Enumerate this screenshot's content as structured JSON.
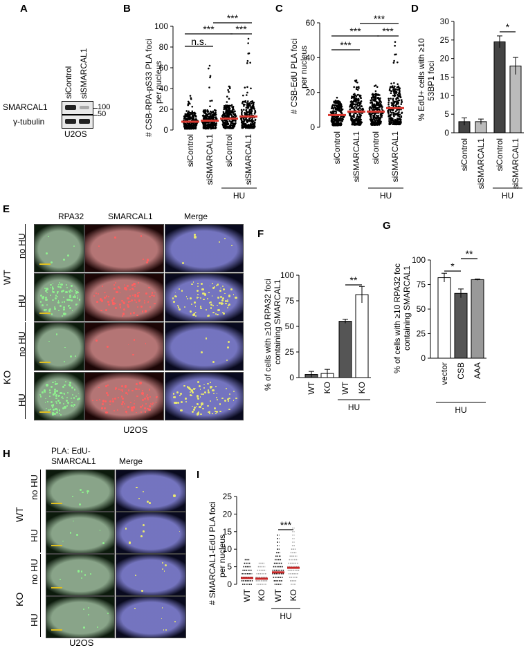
{
  "panels": {
    "A": {
      "letter": "A",
      "band1": "SMARCAL1",
      "band2": "γ-tubulin",
      "lane1": "siControl",
      "lane2": "siSMARCAL1",
      "mw1": "100",
      "mw2": "50",
      "cell": "U2OS"
    },
    "B": {
      "letter": "B",
      "ylabel": "# CSB-RPA-pS33 PLA foci per nucleus",
      "ylabel1": "# CSB-RPA-pS33 PLA foci",
      "ylabel2": "per nucleus",
      "categories": [
        "siControl",
        "siSMARCAL1",
        "siControl",
        "siSMARCAL1"
      ],
      "group": "HU",
      "ns": "n.s.",
      "sig1": "***",
      "sig2": "***",
      "sig3": "***",
      "ticks": [
        "0",
        "20",
        "40",
        "60",
        "80",
        "100"
      ]
    },
    "C": {
      "letter": "C",
      "ylabel1": "# CSB-EdU PLA foci",
      "ylabel2": "per nucleus",
      "categories": [
        "siControl",
        "siSMARCAL1",
        "siControl",
        "siSMARCAL1"
      ],
      "group": "HU",
      "sig1": "***",
      "sig2": "***",
      "sig3": "***",
      "sig4": "***",
      "ticks": [
        "0",
        "20",
        "40",
        "60"
      ]
    },
    "D": {
      "letter": "D",
      "ylabel1": "% EdU+ cells with ≥10",
      "ylabel2": "53BP1 foci",
      "categories": [
        "siControl",
        "siSMARCAL1",
        "siControl",
        "siSMARCAL1"
      ],
      "group": "HU",
      "sig": "*",
      "ticks": [
        "0",
        "5",
        "10",
        "15",
        "20",
        "25",
        "30"
      ]
    },
    "E": {
      "letter": "E",
      "cols": [
        "RPA32",
        "SMARCAL1",
        "Merge"
      ],
      "rows": [
        "no HU",
        "HU",
        "no HU",
        "HU"
      ],
      "genotypes": [
        "WT",
        "KO"
      ],
      "cell": "U2OS"
    },
    "F": {
      "letter": "F",
      "ylabel1": "% of cells with ≥10 RPA32 foci",
      "ylabel2": "containing SMARCAL1",
      "categories": [
        "WT",
        "KO",
        "WT",
        "KO"
      ],
      "group": "HU",
      "sig": "**",
      "ticks": [
        "0",
        "25",
        "50",
        "75",
        "100"
      ]
    },
    "G": {
      "letter": "G",
      "ylabel1": "% of cells with ≥10 RPA32 foc",
      "ylabel2": "containing SMARCAL1",
      "categories": [
        "vector",
        "CSB",
        "AAA"
      ],
      "group": "HU",
      "sig1": "*",
      "sig2": "**",
      "ticks": [
        "0",
        "25",
        "50",
        "75",
        "100"
      ]
    },
    "H": {
      "letter": "H",
      "col1a": "PLA: EdU-",
      "col1b": "SMARCAL1",
      "col2": "Merge",
      "rows": [
        "no HU",
        "HU",
        "no HU",
        "HU"
      ],
      "genotypes": [
        "WT",
        "KO"
      ],
      "cell": "U2OS"
    },
    "I": {
      "letter": "I",
      "ylabel1": "# SMARCAL1-EdU PLA foci",
      "ylabel2": "per nucleus",
      "categories": [
        "WT",
        "KO",
        "WT",
        "KO"
      ],
      "group": "HU",
      "sig": "***",
      "ticks": [
        "0",
        "5",
        "10",
        "15",
        "20",
        "25"
      ]
    }
  },
  "chart_data": [
    {
      "panel": "B",
      "type": "scatter",
      "ylabel": "# CSB-RPA-pS33 PLA foci per nucleus",
      "ylim": [
        0,
        100
      ],
      "categories": [
        "siControl",
        "siSMARCAL1",
        "siControl HU",
        "siSMARCAL1 HU"
      ],
      "medians": [
        8,
        9,
        11,
        13
      ],
      "maxima": [
        33,
        62,
        42,
        88
      ]
    },
    {
      "panel": "C",
      "type": "scatter",
      "ylabel": "# CSB-EdU PLA foci per nucleus",
      "ylim": [
        0,
        60
      ],
      "categories": [
        "siControl",
        "siSMARCAL1",
        "siControl HU",
        "siSMARCAL1 HU"
      ],
      "medians": [
        7,
        9,
        9,
        11
      ],
      "maxima": [
        17,
        27,
        24,
        49
      ]
    },
    {
      "panel": "D",
      "type": "bar",
      "ylabel": "% EdU+ cells with ≥10 53BP1 foci",
      "ylim": [
        0,
        30
      ],
      "categories": [
        "siControl",
        "siSMARCAL1",
        "siControl HU",
        "siSMARCAL1 HU"
      ],
      "values": [
        3,
        3,
        24.5,
        18
      ],
      "errors": [
        1,
        0.7,
        1.6,
        2.3
      ],
      "colors": [
        "#444444",
        "#bbbbbb",
        "#444444",
        "#bbbbbb"
      ]
    },
    {
      "panel": "F",
      "type": "bar",
      "ylabel": "% of cells with ≥10 RPA32 foci containing SMARCAL1",
      "ylim": [
        0,
        100
      ],
      "categories": [
        "WT",
        "KO",
        "WT HU",
        "KO HU"
      ],
      "values": [
        3,
        4,
        55,
        81
      ],
      "errors": [
        3,
        4,
        2,
        8
      ],
      "colors": [
        "#555555",
        "#ffffff",
        "#555555",
        "#ffffff"
      ]
    },
    {
      "panel": "G",
      "type": "bar",
      "ylabel": "% of cells with ≥10 RPA32 foc containing SMARCAL1",
      "ylim": [
        0,
        100
      ],
      "categories": [
        "vector",
        "CSB",
        "AAA"
      ],
      "values": [
        82,
        66,
        80
      ],
      "errors": [
        4.5,
        4.5,
        0.7
      ],
      "colors": [
        "#ffffff",
        "#555555",
        "#999999"
      ]
    },
    {
      "panel": "I",
      "type": "scatter",
      "ylabel": "# SMARCAL1-EdU PLA foci per nucleus",
      "ylim": [
        0,
        25
      ],
      "categories": [
        "WT",
        "KO",
        "WT HU",
        "KO HU"
      ],
      "medians": [
        1.8,
        1.6,
        3.4,
        4.7
      ],
      "maxima": [
        7,
        6,
        14,
        16
      ]
    }
  ]
}
